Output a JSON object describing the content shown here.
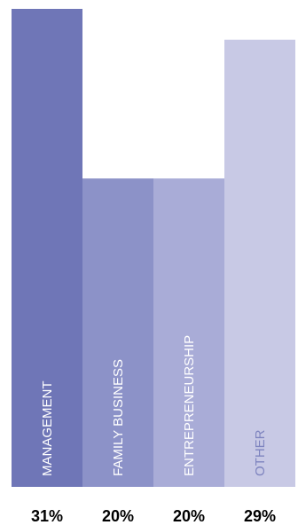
{
  "chart_data": {
    "type": "bar",
    "categories": [
      "MANAGEMENT",
      "FAMILY BUSINESS",
      "ENTREPRENEURSHIP",
      "OTHER"
    ],
    "values": [
      31,
      20,
      20,
      29
    ],
    "value_labels": [
      "31%",
      "20%",
      "20%",
      "29%"
    ],
    "title": "",
    "xlabel": "",
    "ylabel": "",
    "ylim": [
      0,
      31
    ],
    "grid": false,
    "legend": "none",
    "colors": [
      "#6F76B7",
      "#8C92C8",
      "#A9ACD7",
      "#C8C9E5"
    ],
    "category_label_colors": [
      "#FFFFFF",
      "#FFFFFF",
      "#FFFFFF",
      "#7E84BF"
    ],
    "value_label_color": "#000000"
  }
}
